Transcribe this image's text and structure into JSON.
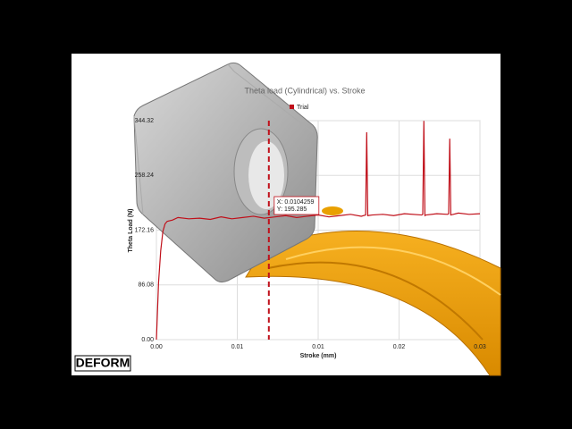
{
  "logo": "DEFORM",
  "chart_data": {
    "type": "line",
    "title": "Theta load (Cylindrical) vs. Stroke",
    "x_label": "Stroke (mm)",
    "y_label": "Theta Load (N)",
    "xlim": [
      0,
      0.03
    ],
    "ylim": [
      0,
      344.32
    ],
    "xticks": [
      {
        "value": 0,
        "label": "0.00"
      },
      {
        "value": 0.0075,
        "label": "0.01"
      },
      {
        "value": 0.015,
        "label": "0.01"
      },
      {
        "value": 0.0225,
        "label": "0.02"
      },
      {
        "value": 0.03,
        "label": "0.03"
      }
    ],
    "yticks": [
      {
        "value": 0,
        "label": "0.00"
      },
      86.08,
      172.16,
      258.24,
      344.32
    ],
    "grid": true,
    "legend": "top",
    "cursor_x": 0.0104259,
    "cursor_labels": [
      "X: 0.0104259",
      "Y: 195.285"
    ],
    "series": [
      {
        "name": "Trial",
        "color": "#c0101a",
        "x": [
          0,
          0.0002,
          0.0004,
          0.0006,
          0.0008,
          0.001,
          0.0015,
          0.002,
          0.003,
          0.004,
          0.005,
          0.006,
          0.007,
          0.008,
          0.009,
          0.01,
          0.011,
          0.012,
          0.013,
          0.014,
          0.015,
          0.016,
          0.017,
          0.018,
          0.019,
          0.0194,
          0.0195,
          0.0196,
          0.02,
          0.021,
          0.022,
          0.023,
          0.0246,
          0.0247,
          0.0248,
          0.0249,
          0.025,
          0.026,
          0.027,
          0.0271,
          0.0272,
          0.0273,
          0.028,
          0.029,
          0.03
        ],
        "values": [
          0,
          90,
          140,
          170,
          182,
          186,
          188,
          192,
          190,
          191,
          189,
          193,
          190,
          192,
          194,
          191,
          193,
          195,
          192,
          194,
          196,
          193,
          195,
          197,
          194,
          196,
          326,
          195,
          196,
          197,
          195,
          198,
          196,
          197,
          344,
          195,
          196,
          198,
          197,
          198,
          316,
          196,
          199,
          197,
          198
        ]
      }
    ]
  }
}
